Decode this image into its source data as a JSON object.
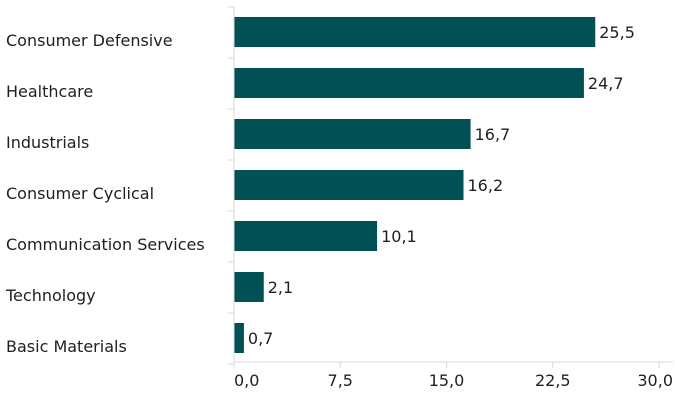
{
  "chart_data": {
    "type": "bar",
    "orientation": "horizontal",
    "title": "",
    "xlabel": "",
    "ylabel": "",
    "categories": [
      "Consumer Defensive",
      "Healthcare",
      "Industrials",
      "Consumer Cyclical",
      "Communication Services",
      "Technology",
      "Basic Materials"
    ],
    "values": [
      25.5,
      24.7,
      16.7,
      16.2,
      10.1,
      2.1,
      0.7
    ],
    "value_labels": [
      "25,5",
      "24,7",
      "16,7",
      "16,2",
      "10,1",
      "2,1",
      "0,7"
    ],
    "xlim": [
      0,
      30
    ],
    "x_ticks": [
      0,
      7.5,
      15,
      22.5,
      30
    ],
    "x_tick_labels": [
      "0,0",
      "7,5",
      "15,0",
      "22,5",
      "30,0"
    ],
    "bar_color": "#005055",
    "grid": false,
    "legend": "none"
  }
}
